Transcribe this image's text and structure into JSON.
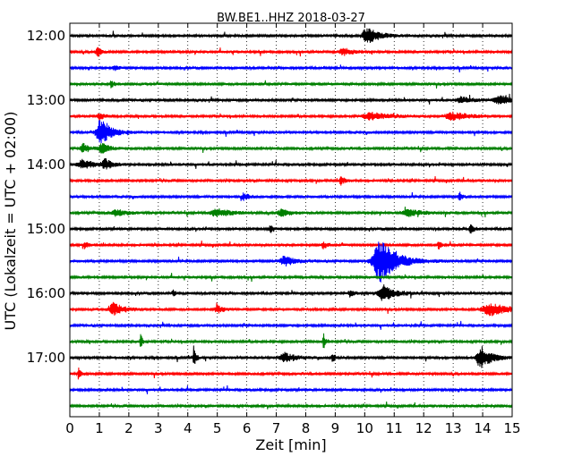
{
  "chart_data": {
    "type": "line",
    "title": "BW.BE1..HHZ 2018-03-27",
    "xlabel": "Zeit  [min]",
    "ylabel": "UTC (Lokalzeit = UTC + 02:00)",
    "xlim": [
      0,
      15
    ],
    "x_ticks": [
      0,
      1,
      2,
      3,
      4,
      5,
      6,
      7,
      8,
      9,
      10,
      11,
      12,
      13,
      14,
      15
    ],
    "x_tick_labels": [
      "0",
      "1",
      "2",
      "3",
      "4",
      "5",
      "6",
      "7",
      "8",
      "9",
      "10",
      "11",
      "12",
      "13",
      "14",
      "15"
    ],
    "y_tick_labels": [
      "12:00",
      "13:00",
      "14:00",
      "15:00",
      "16:00",
      "17:00"
    ],
    "grid": {
      "vertical": true,
      "style": "dotted"
    },
    "legend": "none",
    "trace_interval_min": 15,
    "color_cycle": [
      "#000000",
      "#ff0000",
      "#0000ff",
      "#008000"
    ],
    "traces": [
      {
        "start": "12:00",
        "color": "#000000",
        "events": [
          [
            10.1,
            1.0,
            0.35
          ]
        ]
      },
      {
        "start": "12:15",
        "color": "#ff0000",
        "events": [
          [
            0.95,
            0.6,
            0.1
          ],
          [
            9.3,
            0.4,
            0.3
          ]
        ]
      },
      {
        "start": "12:30",
        "color": "#0000ff",
        "events": [
          [
            1.5,
            0.35,
            0.1
          ]
        ]
      },
      {
        "start": "12:45",
        "color": "#008000",
        "events": [
          [
            1.4,
            0.4,
            0.1
          ]
        ]
      },
      {
        "start": "13:00",
        "color": "#000000",
        "events": [
          [
            13.3,
            0.4,
            0.3
          ],
          [
            14.6,
            0.5,
            0.4
          ]
        ]
      },
      {
        "start": "13:15",
        "color": "#ff0000",
        "events": [
          [
            1.0,
            0.55,
            0.1
          ],
          [
            10.2,
            0.5,
            0.5
          ],
          [
            13.0,
            0.45,
            0.5
          ]
        ]
      },
      {
        "start": "13:30",
        "color": "#0000ff",
        "events": [
          [
            1.05,
            1.7,
            0.3
          ]
        ]
      },
      {
        "start": "13:45",
        "color": "#008000",
        "events": [
          [
            0.45,
            0.6,
            0.2
          ],
          [
            1.1,
            0.6,
            0.2
          ]
        ]
      },
      {
        "start": "14:00",
        "color": "#000000",
        "events": [
          [
            0.45,
            0.6,
            0.35
          ],
          [
            1.2,
            0.6,
            0.2
          ]
        ]
      },
      {
        "start": "14:15",
        "color": "#ff0000",
        "events": [
          [
            9.2,
            0.55,
            0.1
          ]
        ]
      },
      {
        "start": "14:30",
        "color": "#0000ff",
        "events": [
          [
            5.9,
            0.4,
            0.15
          ],
          [
            13.2,
            0.8,
            0.05
          ]
        ]
      },
      {
        "start": "14:45",
        "color": "#008000",
        "events": [
          [
            1.6,
            0.4,
            0.3
          ],
          [
            5.0,
            0.5,
            0.4
          ],
          [
            7.2,
            0.4,
            0.3
          ],
          [
            11.5,
            0.4,
            0.4
          ]
        ]
      },
      {
        "start": "15:00",
        "color": "#000000",
        "events": [
          [
            6.8,
            0.55,
            0.05
          ],
          [
            13.6,
            0.5,
            0.1
          ]
        ]
      },
      {
        "start": "15:15",
        "color": "#ff0000",
        "events": [
          [
            0.5,
            0.4,
            0.1
          ],
          [
            8.6,
            0.45,
            0.1
          ],
          [
            12.5,
            0.6,
            0.05
          ]
        ]
      },
      {
        "start": "15:30",
        "color": "#0000ff",
        "events": [
          [
            7.3,
            0.6,
            0.3
          ],
          [
            10.55,
            2.6,
            0.5
          ]
        ]
      },
      {
        "start": "15:45",
        "color": "#008000",
        "events": []
      },
      {
        "start": "16:00",
        "color": "#000000",
        "events": [
          [
            3.5,
            0.45,
            0.05
          ],
          [
            9.5,
            0.4,
            0.1
          ],
          [
            10.65,
            1.0,
            0.35
          ]
        ]
      },
      {
        "start": "16:15",
        "color": "#ff0000",
        "events": [
          [
            1.5,
            0.8,
            0.3
          ],
          [
            5.0,
            0.5,
            0.15
          ],
          [
            14.3,
            0.7,
            0.6
          ]
        ]
      },
      {
        "start": "16:30",
        "color": "#0000ff",
        "events": []
      },
      {
        "start": "16:45",
        "color": "#008000",
        "events": [
          [
            2.4,
            0.9,
            0.05
          ],
          [
            8.6,
            1.1,
            0.05
          ]
        ]
      },
      {
        "start": "17:00",
        "color": "#000000",
        "events": [
          [
            4.2,
            1.4,
            0.05
          ],
          [
            7.3,
            0.6,
            0.3
          ],
          [
            8.9,
            0.8,
            0.05
          ],
          [
            13.95,
            1.4,
            0.3
          ]
        ]
      },
      {
        "start": "17:15",
        "color": "#ff0000",
        "events": [
          [
            0.3,
            0.8,
            0.05
          ]
        ]
      },
      {
        "start": "17:30",
        "color": "#0000ff",
        "events": []
      },
      {
        "start": "17:45",
        "color": "#008000",
        "events": [
          [
            15.0,
            0.4,
            0.05
          ]
        ]
      }
    ]
  }
}
